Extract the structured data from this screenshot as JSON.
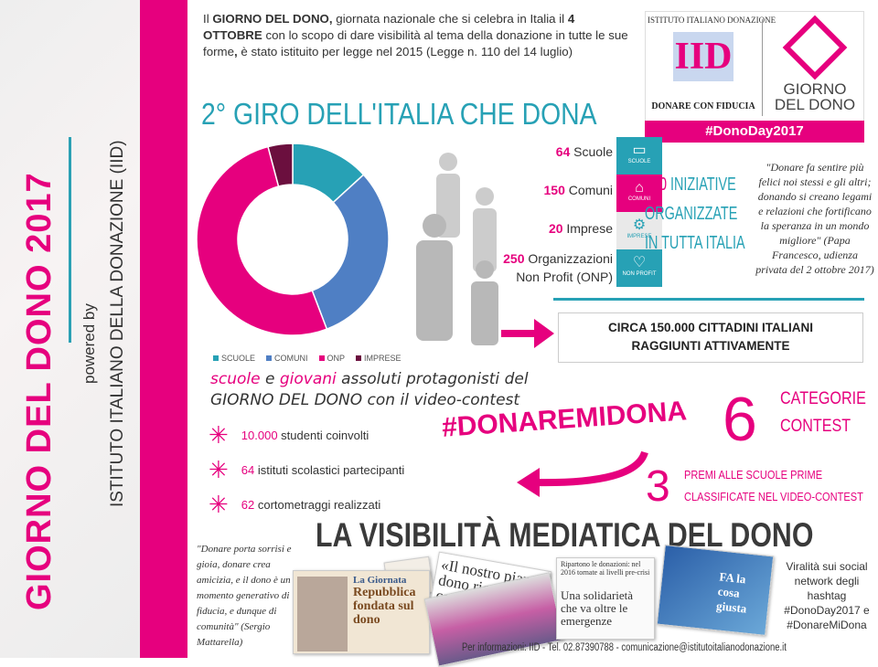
{
  "sidebar": {
    "title": "GIORNO DEL DONO 2017",
    "powered": "powered by",
    "institute": "ISTITUTO ITALIANO DELLA DONAZIONE (IID)"
  },
  "intro": {
    "p1": "Il ",
    "b1": "GIORNO DEL DONO,",
    "p2": " giornata nazionale che si celebra in Italia il ",
    "b2": "4 OTTOBRE",
    "p3": " con lo scopo di dare visibilità al tema della donazione in tutte le sue forme",
    "b3": ",",
    "p4": " è stato istituito per legge nel 2015 (Legge n. 110 del 14 luglio)"
  },
  "headline": "2° GIRO DELL'ITALIA CHE DONA",
  "logo": {
    "monogram": "IID",
    "arc": "ISTITUTO ITALIANO DONAZIONE",
    "subtitle": "DONARE CON FIDUCIA",
    "gdd1": "GIORNO",
    "gdd2": "DEL DONO",
    "hashtag": "#DonoDay2017"
  },
  "chart_data": {
    "type": "pie",
    "donut": true,
    "categories": [
      "SCUOLE",
      "COMUNI",
      "ONP",
      "IMPRESE"
    ],
    "values": [
      64,
      150,
      250,
      20
    ],
    "colors": [
      "#27a1b5",
      "#4f7fc4",
      "#e6007e",
      "#6b0f3e"
    ],
    "legend": "bottom"
  },
  "stats": [
    {
      "num": "64",
      "label": " Scuole"
    },
    {
      "num": "150",
      "label": " Comuni"
    },
    {
      "num": "20",
      "label": " Imprese"
    },
    {
      "num": "250",
      "label": " Organizzazioni"
    }
  ],
  "stats_extra": "Non Profit (ONP)",
  "tiles": [
    {
      "icon": "book-icon",
      "label": "SCUOLE",
      "color": "#27a1b5"
    },
    {
      "icon": "building-icon",
      "label": "COMUNI",
      "color": "#e6007e"
    },
    {
      "icon": "gears-icon",
      "label": "IMPRESE",
      "color": "#e9e9e9"
    },
    {
      "icon": "heart-icon",
      "label": "NON PROFIT",
      "color": "#27a1b5"
    }
  ],
  "initiatives": {
    "num": "150",
    "l1": " INIZIATIVE",
    "l2": "ORGANIZZATE",
    "l3": "IN TUTTA ITALIA"
  },
  "papa_quote": "\"Donare fa sentire più felici noi stessi e gli altri; donando si creano legami e relazioni che fortificano la speranza in un mondo migliore\" (Papa Francesco, udienza privata del 2 ottobre 2017)",
  "circa": {
    "l1": "CIRCA 150.000 CITTADINI ITALIANI",
    "l2": "RAGGIUNTI ATTIVAMENTE"
  },
  "contest": {
    "w1": "scuole",
    "w2": " e ",
    "w3": "giovani",
    "w4": " assoluti protagonisti del",
    "l2": "GIORNO DEL DONO con il video-contest"
  },
  "bullets": [
    {
      "num": "10.000",
      "text": " studenti coinvolti"
    },
    {
      "num": "64",
      "text": " istituti scolastici partecipanti"
    },
    {
      "num": "62",
      "text": " cortometraggi realizzati"
    }
  ],
  "hashtag": "#DONAREMIDONA",
  "six": "6",
  "categories": {
    "l1": "CATEGORIE",
    "l2": "CONTEST"
  },
  "three": "3",
  "premi": {
    "l1": "PREMI ALLE SCUOLE PRIME",
    "l2": "CLASSIFICATE NEL VIDEO-CONTEST"
  },
  "media_title": "LA VISIBILITÀ MEDIATICA DEL DONO",
  "mattarella": "\"Donare porta sorrisi e gioia, donare crea amicizia, e il dono è un momento generativo di fiducia, e dunque di comunità\" (Sergio Mattarella)",
  "clips": {
    "giornata": "La Giornata",
    "repubblica": "Repubblica fondata sul dono",
    "piano": "«Il nostro piano dono ricevuto da co",
    "ripartono": "Ripartono le donazioni: nel 2016 tornate ai livelli pre-crisi",
    "solidarieta": "Una solidarietà che va oltre le emergenze",
    "fa": "FA la cosa giusta"
  },
  "viral": "Viralità sui social network degli hashtag #DonoDay2017 e #DonareMiDona",
  "footer": "Per informazioni: IID - Tel. 02.87390788 - comunicazione@istitutoitalianodonazione.it"
}
